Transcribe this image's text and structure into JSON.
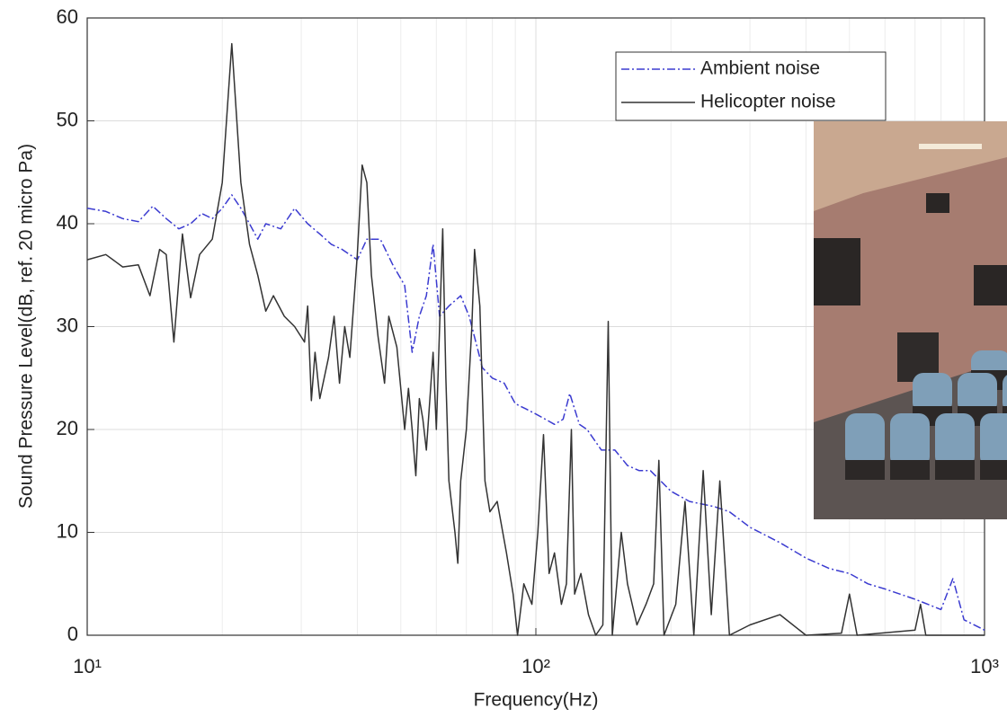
{
  "chart_data": {
    "type": "line",
    "xlabel": "Frequency(Hz)",
    "ylabel": "Sound Pressure Level(dB, ref. 20 micro Pa)",
    "xscale": "log",
    "xlim": [
      10,
      1000
    ],
    "xticks": [
      {
        "value": 10,
        "label": "10¹"
      },
      {
        "value": 100,
        "label": "10²"
      },
      {
        "value": 1000,
        "label": "10³"
      }
    ],
    "ylim": [
      0,
      60
    ],
    "yticks": [
      0,
      10,
      20,
      30,
      40,
      50,
      60
    ],
    "grid": true,
    "legend": "upper right",
    "series": [
      {
        "name": "Ambient noise",
        "color": "#3b3bd0",
        "style": "dashdot",
        "x": [
          10,
          11,
          12,
          13,
          14,
          15,
          16,
          17,
          18,
          19,
          20,
          21,
          22,
          23,
          24,
          25,
          27,
          29,
          31,
          33,
          35,
          37,
          40,
          42,
          45,
          48,
          51,
          53,
          55,
          57,
          59,
          61,
          64,
          68,
          71,
          74,
          76,
          80,
          85,
          90,
          95,
          100,
          105,
          110,
          115,
          119,
          125,
          130,
          140,
          150,
          160,
          170,
          180,
          200,
          220,
          250,
          270,
          300,
          350,
          400,
          450,
          500,
          550,
          600,
          700,
          800,
          850,
          900,
          1000
        ],
        "values": [
          41.5,
          41.2,
          40.5,
          40.2,
          41.7,
          40.5,
          39.5,
          40,
          41,
          40.5,
          41.5,
          42.8,
          41.5,
          40,
          38.5,
          40,
          39.5,
          41.5,
          40,
          39,
          38,
          37.5,
          36.5,
          38.5,
          38.5,
          36,
          34,
          27.5,
          31,
          33,
          38,
          31,
          32,
          33,
          31,
          28,
          26,
          25,
          24.5,
          22.5,
          22,
          21.5,
          21,
          20.5,
          21,
          23.5,
          20.5,
          20,
          18,
          18,
          16.5,
          16,
          16,
          14,
          13,
          12.5,
          12,
          10.5,
          9,
          7.5,
          6.5,
          6,
          5,
          4.5,
          3.5,
          2.5,
          5.5,
          1.5,
          0.5
        ]
      },
      {
        "name": "Helicopter noise",
        "color": "#333333",
        "style": "solid",
        "x": [
          10,
          11,
          12,
          13,
          13.8,
          14.5,
          15,
          15.6,
          16.3,
          17,
          17.8,
          19,
          20,
          21,
          22,
          23,
          24,
          25,
          26,
          27.5,
          29,
          30.5,
          31,
          31.6,
          32.2,
          33,
          34.5,
          35.5,
          36.5,
          37.5,
          38.5,
          40,
          41,
          42,
          43,
          44.5,
          46,
          47,
          49,
          51,
          52,
          53,
          54,
          55,
          56,
          57,
          59,
          60,
          62,
          63,
          64,
          66,
          67,
          68,
          70,
          72,
          73,
          75,
          77,
          79,
          82,
          86,
          89,
          91,
          94,
          98,
          101,
          104,
          107,
          110,
          114,
          117,
          120,
          122,
          126,
          131,
          136,
          141,
          145,
          148,
          155,
          160,
          168,
          176,
          183,
          188,
          193,
          205,
          215,
          225,
          236,
          246,
          257,
          270,
          300,
          350,
          400,
          480,
          500,
          520,
          700,
          720,
          740,
          1000
        ],
        "values": [
          36.5,
          37,
          35.8,
          36,
          33,
          37.5,
          37,
          28.5,
          39,
          32.8,
          37,
          38.5,
          44,
          57.5,
          44,
          38,
          35,
          31.5,
          33,
          31,
          30,
          28.5,
          32,
          22.8,
          27.5,
          23,
          27,
          31,
          24.5,
          30,
          27,
          37,
          45.7,
          44,
          35,
          29,
          24.5,
          31,
          28,
          20,
          24,
          20,
          15.5,
          23,
          21,
          18,
          27.5,
          20,
          39.5,
          25,
          15,
          10,
          7,
          15,
          20,
          30,
          37.5,
          32,
          15,
          12,
          13,
          8,
          4,
          0,
          5,
          3,
          10,
          19.5,
          6,
          8,
          3,
          5,
          20,
          4,
          6,
          2,
          0,
          1,
          30.5,
          0,
          10,
          5,
          1,
          3,
          5,
          17,
          0,
          3,
          13,
          0,
          16,
          2,
          15,
          0,
          1,
          2,
          0,
          0.2,
          4,
          0,
          0.5,
          3,
          0,
          0
        ]
      }
    ]
  }
}
